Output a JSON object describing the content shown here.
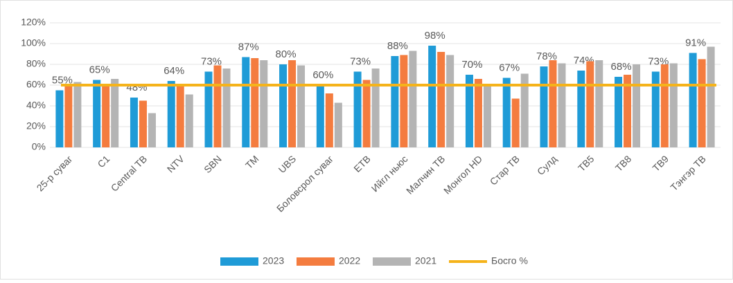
{
  "chart_data": {
    "type": "bar",
    "categories": [
      "25-р суваг",
      "C1",
      "Central TB",
      "NTV",
      "SBN",
      "TM",
      "UBS",
      "Боловсрол суваг",
      "ETB",
      "Ийгл ньюс",
      "Малчин ТВ",
      "Монгол HD",
      "Стар ТВ",
      "Сулд",
      "TB5",
      "TB8",
      "TB9",
      "Тэнгэр ТВ"
    ],
    "series": [
      {
        "name": "2023",
        "color": "#1f9bd7",
        "values": [
          55,
          65,
          48,
          64,
          73,
          87,
          80,
          60,
          73,
          88,
          98,
          70,
          67,
          78,
          74,
          68,
          73,
          91
        ],
        "value_labels": [
          "55%",
          "65%",
          "48%",
          "64%",
          "73%",
          "87%",
          "80%",
          "60%",
          "73%",
          "88%",
          "98%",
          "70%",
          "67%",
          "78%",
          "74%",
          "68%",
          "73%",
          "91%"
        ]
      },
      {
        "name": "2022",
        "color": "#f47c3f",
        "values": [
          60,
          61,
          45,
          60,
          79,
          86,
          84,
          52,
          65,
          89,
          92,
          66,
          47,
          84,
          83,
          70,
          80,
          85
        ]
      },
      {
        "name": "2021",
        "color": "#b4b4b4",
        "values": [
          63,
          66,
          33,
          51,
          76,
          84,
          79,
          43,
          76,
          93,
          89,
          60,
          71,
          81,
          84,
          80,
          81,
          97
        ]
      }
    ],
    "threshold": {
      "name": "Босго %",
      "value": 60,
      "color": "#f5b31a"
    },
    "ylim": [
      0,
      120
    ],
    "yticks": [
      {
        "value": 0,
        "label": "0%"
      },
      {
        "value": 20,
        "label": "20%"
      },
      {
        "value": 40,
        "label": "40%"
      },
      {
        "value": 60,
        "label": "60%"
      },
      {
        "value": 80,
        "label": "80%"
      },
      {
        "value": 100,
        "label": "100%"
      },
      {
        "value": 120,
        "label": "120%"
      }
    ],
    "grid": true
  }
}
